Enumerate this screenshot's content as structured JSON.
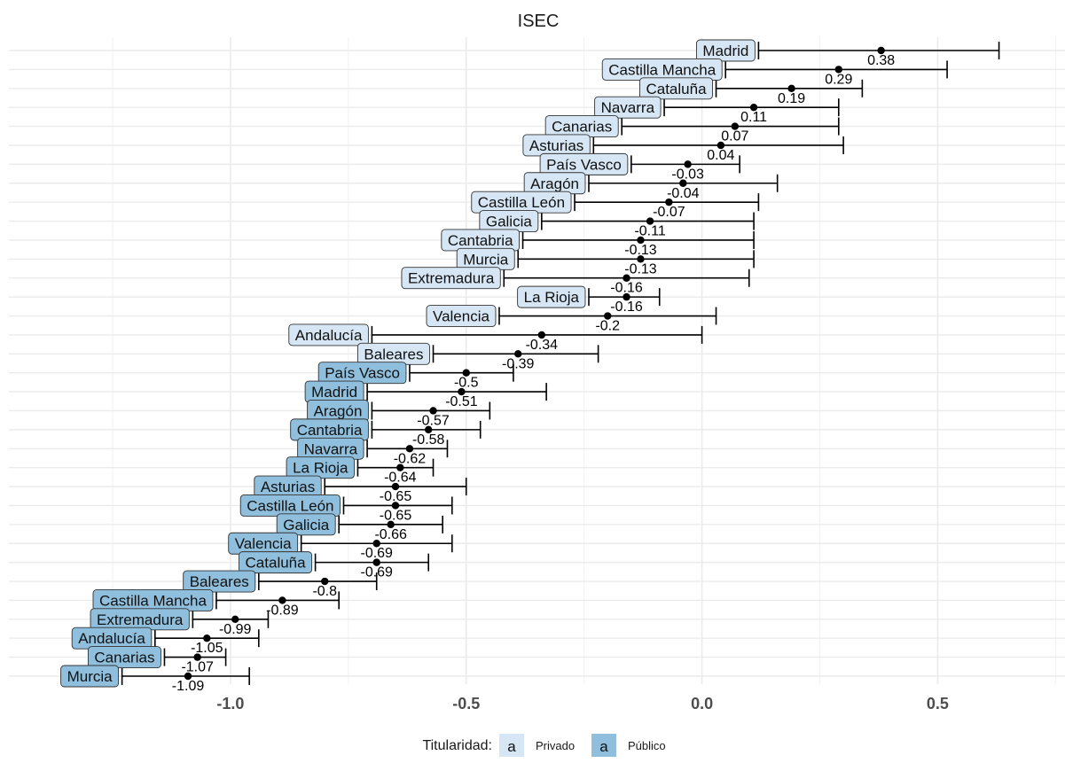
{
  "chart_data": {
    "type": "errorbar",
    "title": "ISEC",
    "xlabel": "",
    "ylabel": "",
    "xlim": [
      -1.47,
      0.77
    ],
    "x_ticks": [
      -1.0,
      -0.5,
      0.0,
      0.5
    ],
    "x_tick_labels": [
      "-1.0",
      "-0.5",
      "0.0",
      "0.5"
    ],
    "grid": true,
    "legend": {
      "position": "bottom",
      "title": "Titularidad:",
      "key_glyph": "a",
      "entries": [
        {
          "name": "Privado",
          "color": "#d6e6f4"
        },
        {
          "name": "Público",
          "color": "#8fbfdc"
        }
      ]
    },
    "colors": {
      "Privado": "#d6e6f4",
      "Público": "#8fbfdc",
      "errorbar": "#000000",
      "grid": "#ebebeb"
    },
    "series": [
      {
        "name": "Privado",
        "points": [
          {
            "label": "Madrid",
            "value": 0.38,
            "value_label": "0.38",
            "lower": 0.12,
            "upper": 0.63
          },
          {
            "label": "Castilla Mancha",
            "value": 0.29,
            "value_label": "0.29",
            "lower": 0.05,
            "upper": 0.52
          },
          {
            "label": "Cataluña",
            "value": 0.19,
            "value_label": "0.19",
            "lower": 0.03,
            "upper": 0.34
          },
          {
            "label": "Navarra",
            "value": 0.11,
            "value_label": "0.11",
            "lower": -0.08,
            "upper": 0.29
          },
          {
            "label": "Canarias",
            "value": 0.07,
            "value_label": "0.07",
            "lower": -0.17,
            "upper": 0.29
          },
          {
            "label": "Asturias",
            "value": 0.04,
            "value_label": "0.04",
            "lower": -0.23,
            "upper": 0.3
          },
          {
            "label": "País Vasco",
            "value": -0.03,
            "value_label": "-0.03",
            "lower": -0.15,
            "upper": 0.08
          },
          {
            "label": "Aragón",
            "value": -0.04,
            "value_label": "-0.04",
            "lower": -0.24,
            "upper": 0.16
          },
          {
            "label": "Castilla León",
            "value": -0.07,
            "value_label": "-0.07",
            "lower": -0.27,
            "upper": 0.12
          },
          {
            "label": "Galicia",
            "value": -0.11,
            "value_label": "-0.11",
            "lower": -0.34,
            "upper": 0.11
          },
          {
            "label": "Cantabria",
            "value": -0.13,
            "value_label": "-0.13",
            "lower": -0.38,
            "upper": 0.11
          },
          {
            "label": "Murcia",
            "value": -0.13,
            "value_label": "-0.13",
            "lower": -0.39,
            "upper": 0.11
          },
          {
            "label": "Extremadura",
            "value": -0.16,
            "value_label": "-0.16",
            "lower": -0.42,
            "upper": 0.1
          },
          {
            "label": "La Rioja",
            "value": -0.16,
            "value_label": "-0.16",
            "lower": -0.24,
            "upper": -0.09
          },
          {
            "label": "Valencia",
            "value": -0.2,
            "value_label": "-0.2",
            "lower": -0.43,
            "upper": 0.03
          },
          {
            "label": "Andalucía",
            "value": -0.34,
            "value_label": "-0.34",
            "lower": -0.7,
            "upper": 0.0
          },
          {
            "label": "Baleares",
            "value": -0.39,
            "value_label": "-0.39",
            "lower": -0.57,
            "upper": -0.22
          }
        ]
      },
      {
        "name": "Público",
        "points": [
          {
            "label": "País Vasco",
            "value": -0.5,
            "value_label": "-0.5",
            "lower": -0.62,
            "upper": -0.4
          },
          {
            "label": "Madrid",
            "value": -0.51,
            "value_label": "-0.51",
            "lower": -0.71,
            "upper": -0.33
          },
          {
            "label": "Aragón",
            "value": -0.57,
            "value_label": "-0.57",
            "lower": -0.7,
            "upper": -0.45
          },
          {
            "label": "Cantabria",
            "value": -0.58,
            "value_label": "-0.58",
            "lower": -0.7,
            "upper": -0.47
          },
          {
            "label": "Navarra",
            "value": -0.62,
            "value_label": "-0.62",
            "lower": -0.71,
            "upper": -0.54
          },
          {
            "label": "La Rioja",
            "value": -0.64,
            "value_label": "-0.64",
            "lower": -0.73,
            "upper": -0.57
          },
          {
            "label": "Asturias",
            "value": -0.65,
            "value_label": "-0.65",
            "lower": -0.8,
            "upper": -0.5
          },
          {
            "label": "Castilla León",
            "value": -0.65,
            "value_label": "-0.65",
            "lower": -0.76,
            "upper": -0.53
          },
          {
            "label": "Galicia",
            "value": -0.66,
            "value_label": "-0.66",
            "lower": -0.77,
            "upper": -0.55
          },
          {
            "label": "Valencia",
            "value": -0.69,
            "value_label": "-0.69",
            "lower": -0.85,
            "upper": -0.53
          },
          {
            "label": "Cataluña",
            "value": -0.69,
            "value_label": "-0.69",
            "lower": -0.82,
            "upper": -0.58
          },
          {
            "label": "Baleares",
            "value": -0.8,
            "value_label": "-0.8",
            "lower": -0.94,
            "upper": -0.69
          },
          {
            "label": "Castilla Mancha",
            "value": -0.89,
            "value_label": "-0.89",
            "lower": -1.03,
            "upper": -0.77
          },
          {
            "label": "Extremadura",
            "value": -0.99,
            "value_label": "-0.99",
            "lower": -1.08,
            "upper": -0.92
          },
          {
            "label": "Andalucía",
            "value": -1.05,
            "value_label": "-1.05",
            "lower": -1.16,
            "upper": -0.94
          },
          {
            "label": "Canarias",
            "value": -1.07,
            "value_label": "-1.07",
            "lower": -1.14,
            "upper": -1.01
          },
          {
            "label": "Murcia",
            "value": -1.09,
            "value_label": "-1.09",
            "lower": -1.23,
            "upper": -0.96
          }
        ]
      }
    ]
  }
}
